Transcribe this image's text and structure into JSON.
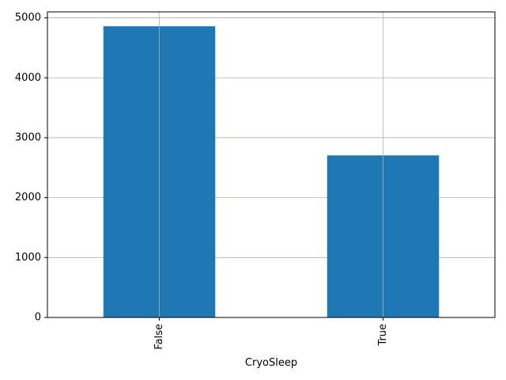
{
  "chart_data": {
    "type": "bar",
    "title": "",
    "xlabel": "CryoSleep",
    "ylabel": "",
    "categories": [
      "False",
      "True"
    ],
    "values": [
      4860,
      2705
    ],
    "ylim": [
      0,
      5100
    ],
    "yticks": [
      0,
      1000,
      2000,
      3000,
      4000,
      5000
    ],
    "ytick_labels": [
      "0",
      "1000",
      "2000",
      "3000",
      "4000",
      "5000"
    ],
    "x_tick_rotation": "vertical",
    "grid": true,
    "legend": false
  },
  "colors": {
    "bar": "#1f77b4",
    "grid": "#b0b0b0",
    "axis": "#000000",
    "background": "#ffffff"
  }
}
